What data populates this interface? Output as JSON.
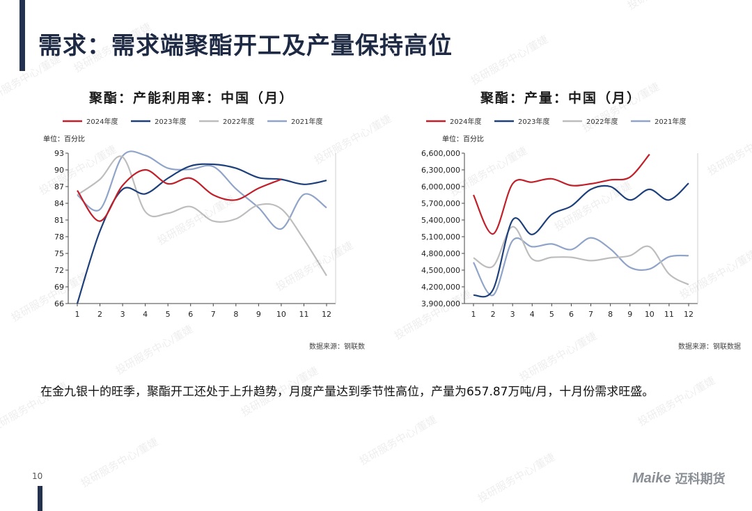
{
  "page": {
    "title": "需求：需求端聚酯开工及产量保持高位",
    "summary": "在金九银十的旺季，聚酯开工还处于上升趋势，月度产量达到季节性高位，产量为657.87万吨/月，十月份需求旺盛。",
    "page_number": "10",
    "logo": {
      "latin": "Maike",
      "cn": "迈科期货"
    },
    "watermark": "投研服务中心/董婕"
  },
  "colors": {
    "accent_bar": "#24314f",
    "s2024": "#c0202a",
    "s2023": "#1d3f7a",
    "s2022": "#bdbdbd",
    "s2021": "#8fa4c8"
  },
  "chart_data": [
    {
      "type": "line",
      "title": "聚酯：产能利用率：中国（月）",
      "unit_label": "单位：百分比",
      "source": "数据来源：钢联数",
      "categories": [
        "1",
        "2",
        "3",
        "4",
        "5",
        "6",
        "7",
        "8",
        "9",
        "10",
        "11",
        "12"
      ],
      "ylim": [
        66,
        93
      ],
      "yticks": [
        "93",
        "90",
        "87",
        "84",
        "81",
        "78",
        "75",
        "72",
        "69",
        "66"
      ],
      "legend_position": "top",
      "grid": false,
      "series": [
        {
          "name": "2024年度",
          "color": "#c0202a",
          "values": [
            86.3,
            80.8,
            87.2,
            90.0,
            87.5,
            88.5,
            85.5,
            84.6,
            86.7,
            88.3,
            null,
            null
          ]
        },
        {
          "name": "2023年度",
          "color": "#1d3f7a",
          "values": [
            66.0,
            79.0,
            86.5,
            85.7,
            88.5,
            90.7,
            91.0,
            90.3,
            88.6,
            88.3,
            87.4,
            88.1
          ]
        },
        {
          "name": "2022年度",
          "color": "#bdbdbd",
          "values": [
            85.5,
            88.3,
            92.3,
            82.5,
            82.2,
            83.4,
            80.8,
            81.2,
            83.7,
            83.0,
            77.5,
            71.0
          ]
        },
        {
          "name": "2021年度",
          "color": "#8fa4c8",
          "values": [
            85.5,
            82.9,
            92.5,
            92.6,
            90.3,
            90.1,
            90.6,
            86.6,
            83.2,
            79.4,
            85.6,
            83.2
          ]
        }
      ]
    },
    {
      "type": "line",
      "title": "聚酯：产量：中国（月）",
      "unit_label": "单位：百分比",
      "source": "数据来源：钢联数据",
      "categories": [
        "1",
        "2",
        "3",
        "4",
        "5",
        "6",
        "7",
        "8",
        "9",
        "10",
        "11",
        "12"
      ],
      "ylim": [
        3900000,
        6600000
      ],
      "yticks": [
        "6,600,000",
        "6,300,000",
        "6,000,000",
        "5,700,000",
        "5,400,000",
        "5,100,000",
        "4,800,000",
        "4,500,000",
        "4,200,000",
        "3,900,000"
      ],
      "legend_position": "top",
      "grid": false,
      "series": [
        {
          "name": "2024年度",
          "color": "#c0202a",
          "values": [
            5850000,
            5150000,
            6050000,
            6080000,
            6140000,
            6020000,
            6050000,
            6120000,
            6170000,
            6580000,
            null,
            null
          ]
        },
        {
          "name": "2023年度",
          "color": "#1d3f7a",
          "values": [
            4050000,
            4150000,
            5400000,
            5140000,
            5500000,
            5650000,
            5950000,
            6000000,
            5760000,
            5950000,
            5760000,
            6060000
          ]
        },
        {
          "name": "2022年度",
          "color": "#bdbdbd",
          "values": [
            4720000,
            4570000,
            5280000,
            4700000,
            4730000,
            4730000,
            4670000,
            4720000,
            4760000,
            4920000,
            4430000,
            4240000
          ]
        },
        {
          "name": "2021年度",
          "color": "#8fa4c8",
          "values": [
            4640000,
            4050000,
            5030000,
            4920000,
            4970000,
            4870000,
            5080000,
            4880000,
            4550000,
            4520000,
            4740000,
            4760000
          ]
        }
      ]
    }
  ]
}
